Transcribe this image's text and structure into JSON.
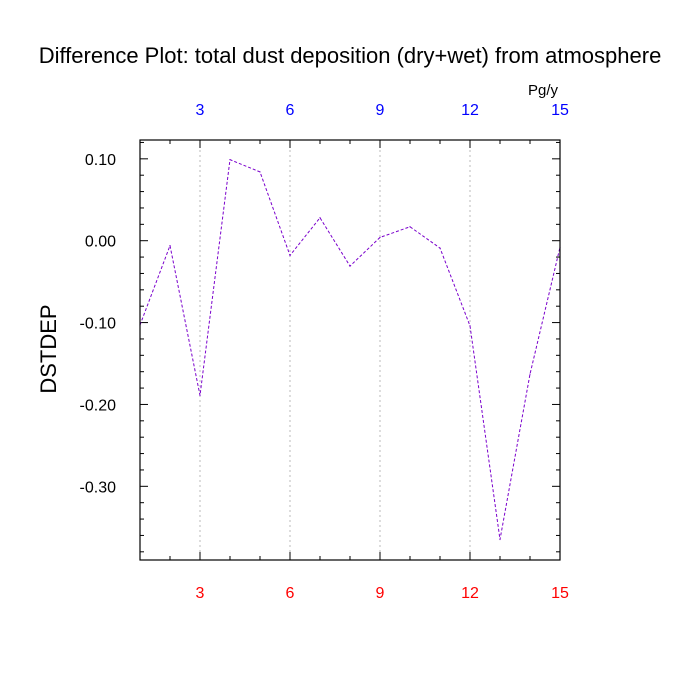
{
  "chart_data": {
    "type": "line",
    "title": "Difference Plot: total dust deposition (dry+wet) from atmosphere",
    "ylabel": "DSTDEP",
    "top_axis_unit": "Pg/y",
    "x": [
      1,
      2,
      3,
      4,
      5,
      6,
      7,
      8,
      9,
      10,
      11,
      12,
      13,
      14,
      15
    ],
    "series": [
      {
        "values": [
          -0.103,
          -0.006,
          -0.189,
          0.099,
          0.084,
          -0.018,
          0.028,
          -0.031,
          0.004,
          0.017,
          -0.009,
          -0.104,
          -0.365,
          -0.163,
          -0.008
        ],
        "color": "#7a00cc",
        "style": "dashed"
      }
    ],
    "xlim": [
      1,
      15
    ],
    "ylim": [
      -0.39,
      0.123
    ],
    "x_ticks": [
      3,
      6,
      9,
      12,
      15
    ],
    "x_tick_labels": [
      "3",
      "6",
      "9",
      "12",
      "15"
    ],
    "y_ticks": [
      0.1,
      0.0,
      -0.1,
      -0.2,
      -0.3
    ],
    "y_tick_labels": [
      "0.10",
      "0.00",
      "-0.10",
      "-0.20",
      "-0.30"
    ],
    "bottom_tick_color": "#ff0000",
    "top_tick_color": "#0000ff",
    "vertical_grid": true,
    "grid_color": "#bbbbbb"
  }
}
